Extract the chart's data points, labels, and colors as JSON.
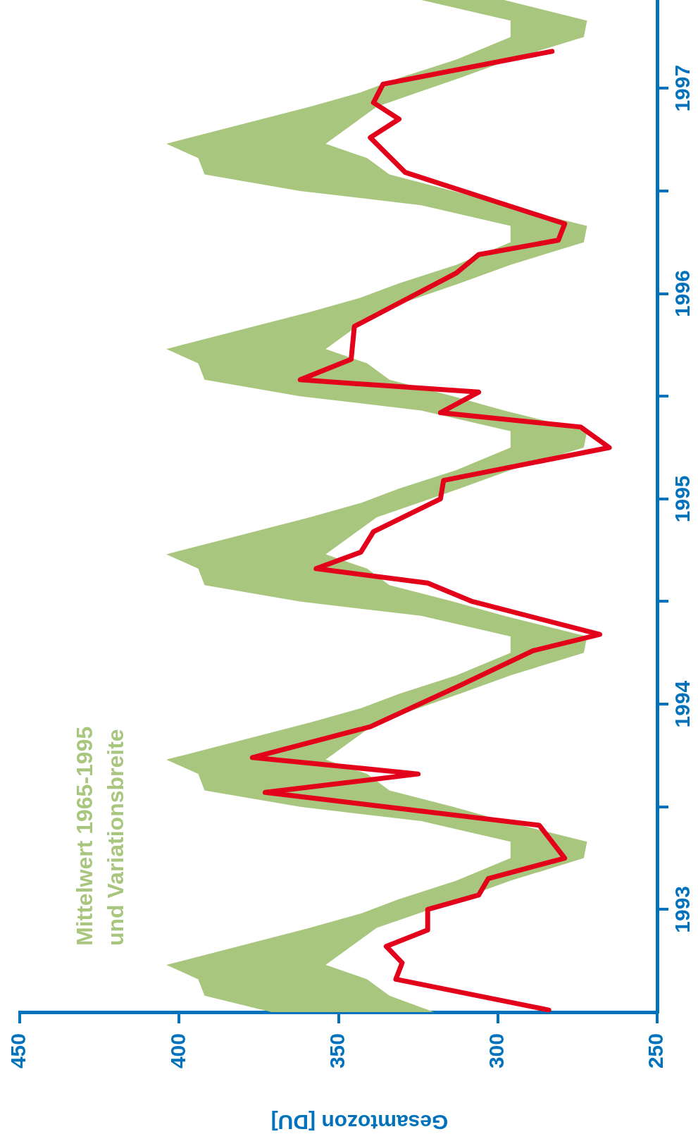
{
  "chart_data": {
    "type": "line",
    "orientation": "horizontal",
    "xlabel": "Gesamtozon [DU]",
    "ylim": [
      1993,
      1997.93
    ],
    "yticks": [
      {
        "value": 1993.5,
        "label": "1993"
      },
      {
        "value": 1994,
        "label": null
      },
      {
        "value": 1994.5,
        "label": "1994"
      },
      {
        "value": 1995,
        "label": null
      },
      {
        "value": 1995.5,
        "label": "1995"
      },
      {
        "value": 1996,
        "label": null
      },
      {
        "value": 1996.5,
        "label": "1996"
      },
      {
        "value": 1997,
        "label": null
      },
      {
        "value": 1997.5,
        "label": "1997"
      }
    ],
    "xlim": [
      450,
      250
    ],
    "xticks": [
      450,
      400,
      350,
      300,
      250
    ],
    "series": [
      {
        "name": "Mittelwert 1965-1995 und Variationsbreite",
        "type": "area",
        "color": "#a9c67e",
        "x": [
          1993,
          1993.08,
          1993.16,
          1993.23,
          1993.41,
          1993.48,
          1993.55,
          1993.64,
          1993.75,
          1993.83,
          1993.93,
          1994,
          1994.08,
          1994.16,
          1994.23,
          1994.41,
          1994.48,
          1994.55,
          1994.64,
          1994.75,
          1994.83,
          1994.93,
          1995,
          1995.08,
          1995.16,
          1995.23,
          1995.41,
          1995.48,
          1995.55,
          1995.64,
          1995.75,
          1995.83,
          1995.93,
          1996,
          1996.08,
          1996.16,
          1996.23,
          1996.41,
          1996.48,
          1996.55,
          1996.64,
          1996.75,
          1996.83,
          1996.93,
          1997,
          1997.08,
          1997.16,
          1997.23,
          1997.41,
          1997.48,
          1997.55,
          1997.64,
          1997.75,
          1997.83,
          1997.93
        ],
        "values": [
          null,
          null,
          null,
          null,
          null,
          null,
          null,
          null,
          null,
          null,
          null,
          null,
          null,
          null,
          null,
          null,
          null,
          null,
          null,
          null,
          null,
          null,
          null,
          null,
          null,
          null,
          null,
          null,
          null,
          null,
          null,
          null,
          null,
          null,
          null,
          null,
          null,
          null,
          null,
          null,
          null,
          null,
          null,
          null,
          null,
          null,
          null,
          null,
          null,
          null,
          null,
          null,
          null,
          null,
          null
        ],
        "upper": [
          371,
          392,
          394,
          404,
          359,
          343,
          331,
          313,
          296,
          296,
          324,
          362,
          392,
          394,
          404,
          359,
          343,
          331,
          313,
          296,
          296,
          324,
          362,
          392,
          394,
          404,
          359,
          343,
          331,
          313,
          296,
          296,
          324,
          362,
          392,
          394,
          404,
          359,
          343,
          331,
          313,
          296,
          296,
          324,
          362,
          392,
          394,
          404,
          359,
          343,
          331,
          313,
          296,
          296,
          324
        ],
        "lower": [
          320,
          334,
          341,
          354,
          338,
          325,
          312,
          296,
          273,
          272,
          298,
          314,
          334,
          341,
          354,
          338,
          325,
          312,
          296,
          273,
          272,
          298,
          314,
          334,
          341,
          354,
          338,
          325,
          312,
          296,
          273,
          272,
          298,
          314,
          334,
          341,
          354,
          338,
          325,
          312,
          296,
          273,
          272,
          298,
          314,
          334,
          341,
          354,
          338,
          325,
          312,
          296,
          273,
          272,
          298
        ]
      },
      {
        "type": "line",
        "color": "#e2001a",
        "x": [
          1993.01,
          1993.16,
          1993.24,
          1993.32,
          1993.4,
          1993.5,
          1993.57,
          1993.65,
          1993.75,
          1993.91,
          1994.07,
          1994.16,
          1994.24,
          1994.39,
          1994.59,
          1994.76,
          1994.84,
          1995,
          1995.09,
          1995.16,
          1995.24,
          1995.34,
          1995.5,
          1995.59,
          1995.75,
          1995.85,
          1995.92,
          1996.02,
          1996.08,
          1996.18,
          1996.34,
          1996.6,
          1996.69,
          1996.76,
          1996.84,
          1997.09,
          1997.26,
          1997.35,
          1997.43,
          1997.52,
          1997.68
        ],
        "values": [
          284,
          332,
          330,
          335,
          322,
          322,
          306,
          303,
          279,
          287,
          373,
          325,
          377,
          340,
          312,
          289,
          268,
          308,
          322,
          357,
          343,
          339,
          318,
          317,
          265,
          274,
          318,
          306,
          362,
          346,
          345,
          313,
          306,
          281,
          279,
          329,
          340,
          331,
          339,
          336,
          283
        ]
      }
    ]
  }
}
